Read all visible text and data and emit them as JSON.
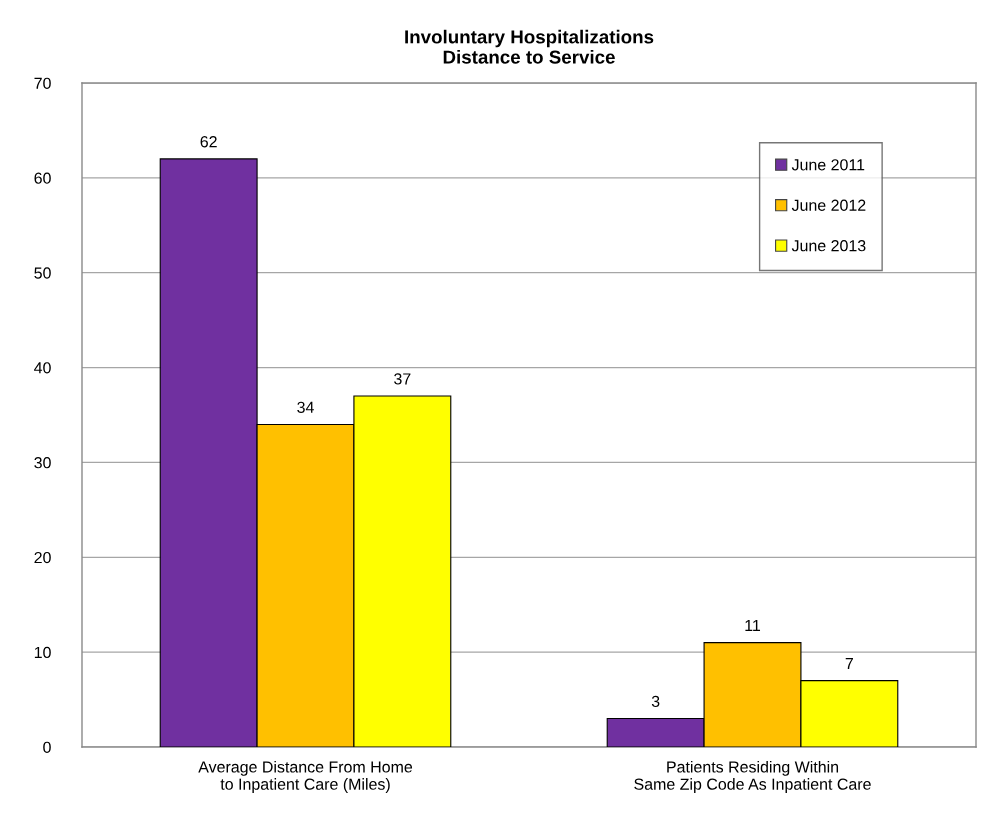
{
  "chart_data": {
    "type": "bar",
    "title": "Involuntary Hospitalizations\nDistance to Service",
    "categories": [
      "Average Distance From Home\nto Inpatient Care (Miles)",
      "Patients Residing Within\nSame Zip Code As Inpatient Care"
    ],
    "series": [
      {
        "name": "June 2011",
        "color": "#7030a0",
        "values": [
          62,
          3
        ]
      },
      {
        "name": "June 2012",
        "color": "#ffc000",
        "values": [
          34,
          11
        ]
      },
      {
        "name": "June 2013",
        "color": "#ffff00",
        "values": [
          37,
          7
        ]
      }
    ],
    "ylim": [
      0,
      70
    ],
    "yticks": [
      0,
      10,
      20,
      30,
      40,
      50,
      60,
      70
    ],
    "grid": "y",
    "legend": "top right",
    "data_labels": true
  }
}
